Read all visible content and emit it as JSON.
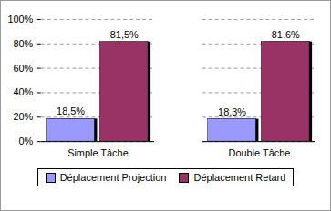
{
  "chart_data": {
    "type": "bar",
    "categories": [
      "Simple Tâche",
      "Double Tâche"
    ],
    "series": [
      {
        "name": "Déplacement Projection",
        "color": "#9999ff",
        "values": [
          18.5,
          18.3
        ],
        "value_labels": [
          "18,5%",
          "18,3%"
        ]
      },
      {
        "name": "Déplacement Retard",
        "color": "#993366",
        "values": [
          81.5,
          81.6
        ],
        "value_labels": [
          "81,5%",
          "81,6%"
        ]
      }
    ],
    "ylim": [
      0,
      100
    ],
    "yticks": [
      {
        "value": 0,
        "label": "0%"
      },
      {
        "value": 20,
        "label": "20%"
      },
      {
        "value": 40,
        "label": "40%"
      },
      {
        "value": 60,
        "label": "60%"
      },
      {
        "value": 80,
        "label": "80%"
      },
      {
        "value": 100,
        "label": "100%"
      }
    ],
    "grid": true,
    "data_labels": true,
    "legend": "bottom"
  }
}
